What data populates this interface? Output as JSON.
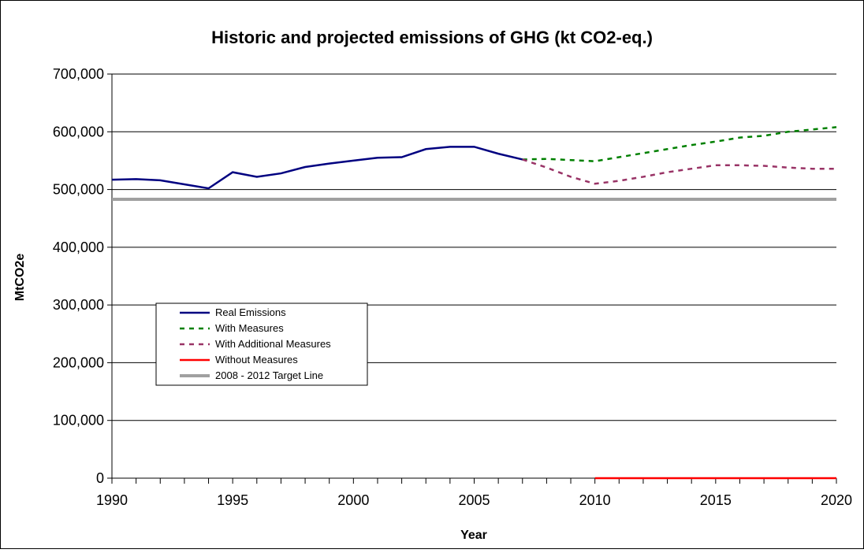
{
  "chart_data": {
    "type": "line",
    "title": "Historic and projected emissions of GHG (kt CO2-eq.)",
    "x_label": "Year",
    "y_label": "MtCO2e",
    "x": [
      1990,
      1991,
      1992,
      1993,
      1994,
      1995,
      1996,
      1997,
      1998,
      1999,
      2000,
      2001,
      2002,
      2003,
      2004,
      2005,
      2006,
      2007,
      2008,
      2009,
      2010,
      2011,
      2012,
      2013,
      2014,
      2015,
      2016,
      2017,
      2018,
      2019,
      2020
    ],
    "xlim": [
      1990,
      2020
    ],
    "xticks": [
      1990,
      1995,
      2000,
      2005,
      2010,
      2015,
      2020
    ],
    "ylim": [
      0,
      700000
    ],
    "yticks": [
      0,
      {
        "value": 100000,
        "label": "100,000"
      },
      {
        "value": 200000,
        "label": "200,000"
      },
      {
        "value": 300000,
        "label": "300,000"
      },
      {
        "value": 400000,
        "label": "400,000"
      },
      {
        "value": 500000,
        "label": "500,000"
      },
      {
        "value": 600000,
        "label": "600,000"
      },
      {
        "value": 700000,
        "label": "700,000"
      }
    ],
    "grid": true,
    "legend": "left",
    "series": [
      {
        "name": "Real Emissions",
        "color": "#000080",
        "dashed": false,
        "values": [
          517000,
          518000,
          516000,
          509000,
          502000,
          530000,
          522000,
          528000,
          539000,
          545000,
          550000,
          555000,
          556000,
          570000,
          574000,
          574000,
          562000,
          552000,
          null,
          null,
          null,
          null,
          null,
          null,
          null,
          null,
          null,
          null,
          null,
          null,
          null
        ]
      },
      {
        "name": "With Measures",
        "color": "#008000",
        "dashed": true,
        "values": [
          null,
          null,
          null,
          null,
          null,
          null,
          null,
          null,
          null,
          null,
          null,
          null,
          null,
          null,
          null,
          null,
          null,
          552000,
          553000,
          551000,
          549000,
          556000,
          563000,
          570000,
          577000,
          583000,
          590000,
          593000,
          600000,
          604000,
          608000
        ]
      },
      {
        "name": "With Additional Measures",
        "color": "#993366",
        "dashed": true,
        "values": [
          null,
          null,
          null,
          null,
          null,
          null,
          null,
          null,
          null,
          null,
          null,
          null,
          null,
          null,
          null,
          null,
          null,
          552000,
          538000,
          522000,
          510000,
          515000,
          522000,
          530000,
          536000,
          542000,
          542000,
          541000,
          538000,
          536000,
          536000
        ]
      },
      {
        "name": "Without Measures",
        "color": "#ff0000",
        "dashed": false,
        "values": [
          null,
          null,
          null,
          null,
          null,
          null,
          null,
          null,
          null,
          null,
          null,
          null,
          null,
          null,
          null,
          null,
          null,
          null,
          null,
          null,
          0,
          0,
          0,
          0,
          0,
          0,
          0,
          0,
          0,
          0,
          0
        ]
      },
      {
        "name": "2008 - 2012 Target Line",
        "color": "#a0a0a0",
        "dashed": false,
        "values": [
          483000,
          483000,
          483000,
          483000,
          483000,
          483000,
          483000,
          483000,
          483000,
          483000,
          483000,
          483000,
          483000,
          483000,
          483000,
          483000,
          483000,
          483000,
          483000,
          483000,
          483000,
          483000,
          483000,
          483000,
          483000,
          483000,
          483000,
          483000,
          483000,
          483000,
          483000
        ]
      }
    ]
  }
}
